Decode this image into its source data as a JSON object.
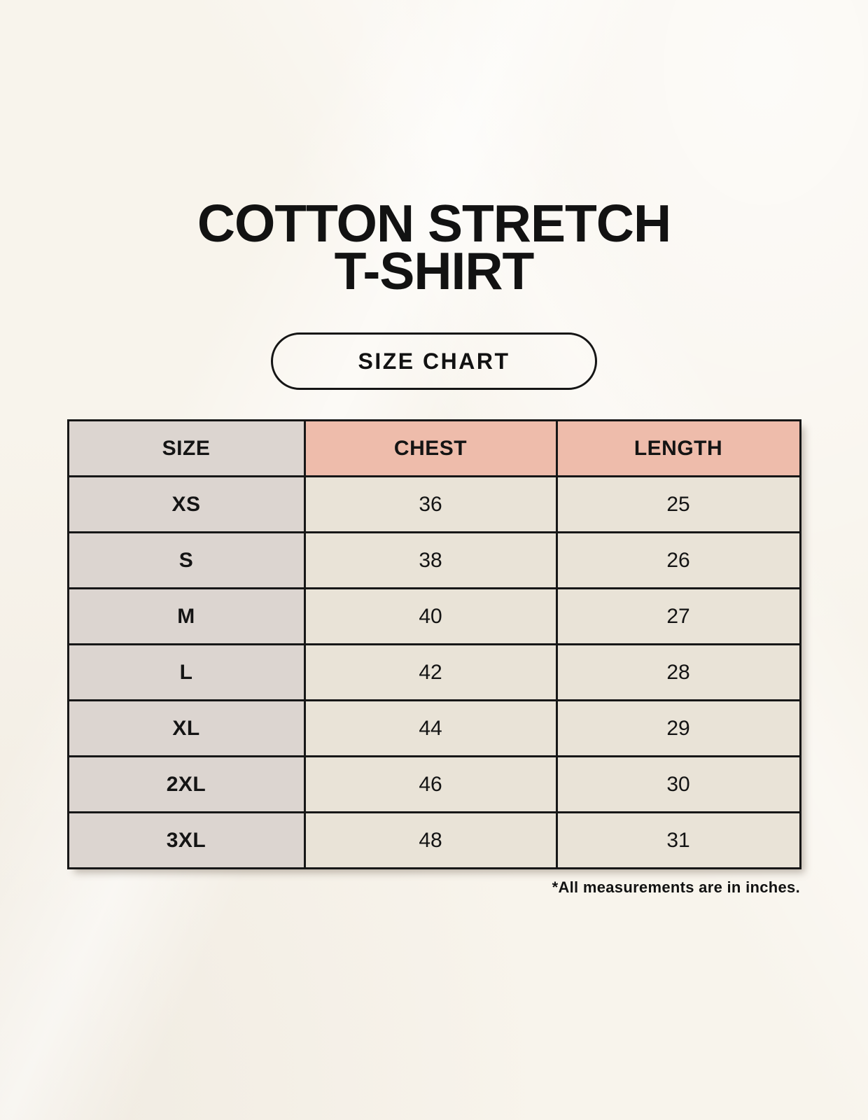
{
  "header": {
    "title_line1": "COTTON STRETCH",
    "title_line2": "T-SHIRT",
    "badge_label": "SIZE CHART"
  },
  "chart_data": {
    "type": "table",
    "title": "COTTON STRETCH T-SHIRT SIZE CHART",
    "columns": [
      "SIZE",
      "CHEST",
      "LENGTH"
    ],
    "rows": [
      [
        "XS",
        36,
        25
      ],
      [
        "S",
        38,
        26
      ],
      [
        "M",
        40,
        27
      ],
      [
        "L",
        42,
        28
      ],
      [
        "XL",
        44,
        29
      ],
      [
        "2XL",
        46,
        30
      ],
      [
        "3XL",
        48,
        31
      ]
    ],
    "units": "inches"
  },
  "footnote": "*All measurements are in inches.",
  "colors": {
    "background": "#f8f4ec",
    "accent_salmon": "#eebcab",
    "neutral_gray": "#dcd5d0",
    "cell_cream": "#e9e3d7",
    "border_black": "#171717",
    "text_black": "#141414"
  }
}
